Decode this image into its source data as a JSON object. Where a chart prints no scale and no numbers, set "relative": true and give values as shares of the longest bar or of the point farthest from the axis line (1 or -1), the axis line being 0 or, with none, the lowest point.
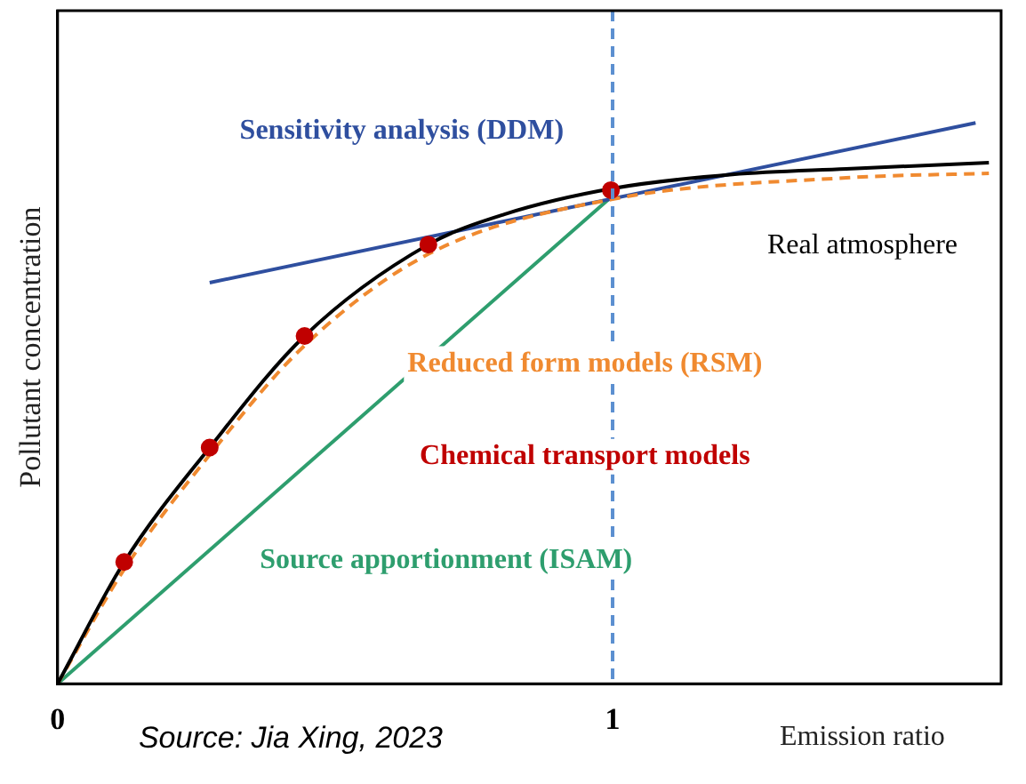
{
  "chart_data": {
    "type": "line",
    "relative": true,
    "xlabel": "Emission ratio",
    "ylabel": "Pollutant concentration",
    "xlim": [
      0,
      1.7
    ],
    "xticks": [
      0,
      1
    ],
    "tick_labels": "x",
    "grid": false,
    "legend": false,
    "marker": "none",
    "series": [
      {
        "name": "Real atmosphere",
        "color": "#000000",
        "x": [
          0,
          0.12,
          0.274,
          0.445,
          0.668,
          0.805,
          1,
          1.216,
          1.421,
          1.678
        ],
        "values": [
          0,
          0.217,
          0.421,
          0.62,
          0.783,
          0.837,
          0.883,
          0.908,
          0.918,
          0.929
        ]
      },
      {
        "name": "Reduced form models (RSM)",
        "color": "#f08a30",
        "line_style": "dashed",
        "x": [
          0,
          0.12,
          0.274,
          0.445,
          0.668,
          1,
          1.421,
          1.678
        ],
        "values": [
          0,
          0.204,
          0.408,
          0.603,
          0.766,
          0.864,
          0.902,
          0.91
        ]
      },
      {
        "name": "Chemical transport models",
        "type": "scatter",
        "marker": "circle",
        "color": "#c00000",
        "x": [
          0.12,
          0.274,
          0.445,
          0.668,
          0.997
        ],
        "values": [
          0.217,
          0.421,
          0.62,
          0.783,
          0.88
        ]
      },
      {
        "name": "Sensitivity analysis (DDM)",
        "color": "#2f4f9f",
        "x": [
          0.274,
          1.654
        ],
        "values": [
          0.715,
          1
        ]
      },
      {
        "name": "Source apportionment (ISAM)",
        "color": "#2e9e6e",
        "x": [
          0,
          1
        ],
        "values": [
          0,
          0.87
        ]
      }
    ],
    "ref_lines": [
      {
        "axis": "x",
        "value": 1,
        "color": "#5b8fd0",
        "line_style": "dashed"
      }
    ],
    "annotations": [
      "Source: Jia Xing, 2023"
    ]
  }
}
